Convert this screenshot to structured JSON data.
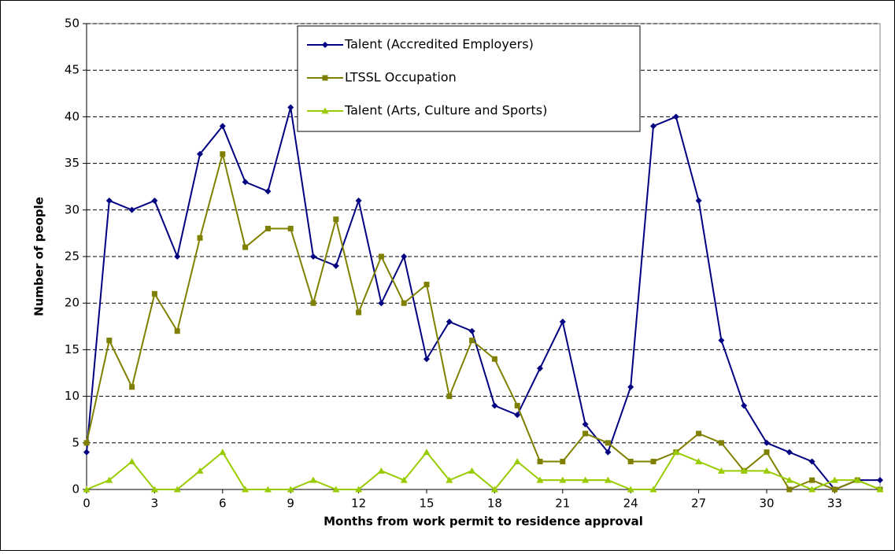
{
  "chart_data": {
    "type": "line",
    "x_label": "Months from work permit to residence approval",
    "y_label": "Number of people",
    "x": [
      0,
      1,
      2,
      3,
      4,
      5,
      6,
      7,
      8,
      9,
      10,
      11,
      12,
      13,
      14,
      15,
      16,
      17,
      18,
      19,
      20,
      21,
      22,
      23,
      24,
      25,
      26,
      27,
      28,
      29,
      30,
      31,
      32,
      33,
      34,
      35
    ],
    "xlim": [
      0,
      35
    ],
    "xticks": [
      0,
      3,
      6,
      9,
      12,
      15,
      18,
      21,
      24,
      27,
      30,
      33
    ],
    "ylim": [
      0,
      50
    ],
    "yticks": [
      0,
      5,
      10,
      15,
      20,
      25,
      30,
      35,
      40,
      45,
      50
    ],
    "grid": true,
    "legend": "top",
    "series": [
      {
        "name": "Talent (Accredited Employers)",
        "color": "#000080",
        "marker": "diamond",
        "values": [
          4,
          31,
          30,
          31,
          25,
          36,
          39,
          33,
          32,
          41,
          25,
          24,
          31,
          20,
          25,
          14,
          18,
          17,
          9,
          8,
          13,
          18,
          7,
          4,
          11,
          39,
          40,
          31,
          16,
          9,
          5,
          4,
          3,
          0,
          1,
          1
        ]
      },
      {
        "name": "LTSSL Occupation",
        "color": "#808000",
        "marker": "square",
        "values": [
          5,
          16,
          11,
          21,
          17,
          27,
          36,
          26,
          28,
          28,
          20,
          29,
          19,
          25,
          20,
          22,
          10,
          16,
          14,
          9,
          3,
          3,
          6,
          5,
          3,
          3,
          4,
          6,
          5,
          2,
          4,
          0,
          1,
          0,
          1,
          0
        ]
      },
      {
        "name": "Talent (Arts, Culture and Sports)",
        "color": "#99cc00",
        "marker": "triangle",
        "values": [
          0,
          1,
          3,
          0,
          0,
          2,
          4,
          0,
          0,
          0,
          1,
          0,
          0,
          2,
          1,
          4,
          1,
          2,
          0,
          3,
          1,
          1,
          1,
          1,
          0,
          0,
          4,
          3,
          2,
          2,
          2,
          1,
          0,
          1,
          1,
          0
        ]
      }
    ]
  }
}
